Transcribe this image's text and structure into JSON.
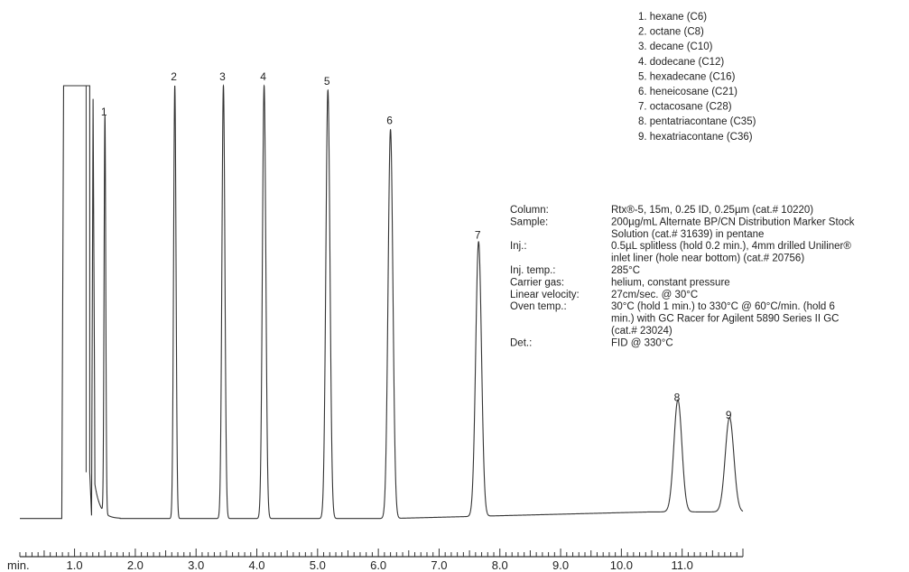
{
  "chart_data": {
    "type": "line",
    "title": "",
    "xlabel": "",
    "ylabel": "",
    "x_unit_label": "min.",
    "xlim": [
      0.1,
      12.0
    ],
    "ylim": [
      0,
      100
    ],
    "x_ticks": [
      {
        "value": 1.0,
        "label": "1.0"
      },
      {
        "value": 2.0,
        "label": "2.0"
      },
      {
        "value": 3.0,
        "label": "3.0"
      },
      {
        "value": 4.0,
        "label": "4.0"
      },
      {
        "value": 5.0,
        "label": "5.0"
      },
      {
        "value": 6.0,
        "label": "6.0"
      },
      {
        "value": 7.0,
        "label": "7.0"
      },
      {
        "value": 8.0,
        "label": "8.0"
      },
      {
        "value": 9.0,
        "label": "9.0"
      },
      {
        "value": 10.0,
        "label": "10.0"
      },
      {
        "value": 11.0,
        "label": "11.0"
      }
    ],
    "minor_tick_step": 0.1,
    "baseline": 1.5,
    "solvent_peak": {
      "start": 0.82,
      "end": 1.25,
      "height": 100
    },
    "peaks": [
      {
        "label": "1",
        "rt": 1.5,
        "height": 92
      },
      {
        "label": "2",
        "rt": 2.65,
        "height": 100
      },
      {
        "label": "3",
        "rt": 3.45,
        "height": 100
      },
      {
        "label": "4",
        "rt": 4.12,
        "height": 100
      },
      {
        "label": "5",
        "rt": 5.17,
        "height": 99
      },
      {
        "label": "6",
        "rt": 6.2,
        "height": 90
      },
      {
        "label": "7",
        "rt": 7.65,
        "height": 64
      },
      {
        "label": "8",
        "rt": 10.93,
        "height": 27
      },
      {
        "label": "9",
        "rt": 11.78,
        "height": 23
      }
    ],
    "legend": [
      "1. hexane (C6)",
      "2. octane (C8)",
      "3. decane (C10)",
      "4. dodecane (C12)",
      "5. hexadecane (C16)",
      "6. heneicosane (C21)",
      "7. octacosane (C28)",
      "8. pentatriacontane (C35)",
      "9. hexatriacontane (C36)"
    ],
    "legend_position": "top-right",
    "conditions": [
      {
        "key": "Column:",
        "lines": [
          "Rtx®-5, 15m, 0.25 ID, 0.25µm (cat.# 10220)"
        ]
      },
      {
        "key": "Sample:",
        "lines": [
          "200µg/mL Alternate BP/CN Distribution Marker Stock",
          "Solution (cat.# 31639) in pentane"
        ]
      },
      {
        "key": "Inj.:",
        "lines": [
          "0.5µL splitless (hold 0.2 min.), 4mm drilled Uniliner®",
          "inlet liner (hole near bottom) (cat.# 20756)"
        ]
      },
      {
        "key": "Inj. temp.:",
        "lines": [
          "285°C"
        ]
      },
      {
        "key": "Carrier gas:",
        "lines": [
          "helium, constant pressure"
        ]
      },
      {
        "key": "Linear velocity:",
        "lines": [
          "27cm/sec. @ 30°C"
        ]
      },
      {
        "key": "Oven temp.:",
        "lines": [
          "30°C (hold 1 min.) to 330°C @ 60°C/min. (hold 6",
          "min.) with GC Racer for Agilent 5890 Series II GC",
          "(cat.# 23024)"
        ]
      },
      {
        "key": "Det.:",
        "lines": [
          "FID @ 330°C"
        ]
      }
    ],
    "grid": false
  }
}
